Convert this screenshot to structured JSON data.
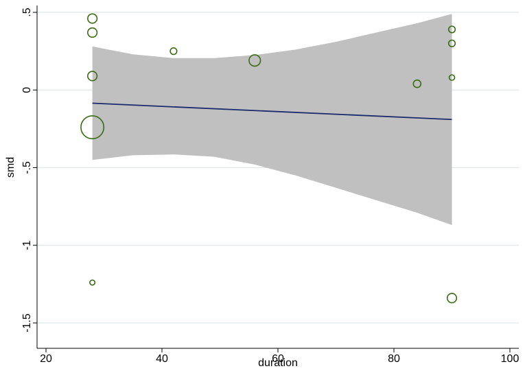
{
  "chart_data": {
    "type": "scatter",
    "xlabel": "duration",
    "ylabel": "smd",
    "xlim": [
      20,
      100
    ],
    "ylim": [
      -1.5,
      0.5
    ],
    "x_ticks": [
      {
        "value": 20,
        "label": "20"
      },
      {
        "value": 40,
        "label": "40"
      },
      {
        "value": 60,
        "label": "60"
      },
      {
        "value": 80,
        "label": "80"
      },
      {
        "value": 100,
        "label": "100"
      }
    ],
    "y_ticks": [
      {
        "value": 0.5,
        "label": ".5"
      },
      {
        "value": 0,
        "label": "0"
      },
      {
        "value": -0.5,
        "label": "-.5"
      },
      {
        "value": -1,
        "label": "-1"
      },
      {
        "value": -1.5,
        "label": "-1.5"
      }
    ],
    "grid": "horizontal",
    "points": [
      {
        "x": 28,
        "y": 0.46,
        "weight": 2
      },
      {
        "x": 28,
        "y": 0.37,
        "weight": 2
      },
      {
        "x": 28,
        "y": 0.09,
        "weight": 2
      },
      {
        "x": 28,
        "y": -0.24,
        "weight": 12
      },
      {
        "x": 28,
        "y": -1.24,
        "weight": 0.6
      },
      {
        "x": 42,
        "y": 0.25,
        "weight": 1
      },
      {
        "x": 56,
        "y": 0.19,
        "weight": 3
      },
      {
        "x": 84,
        "y": 0.04,
        "weight": 1.3
      },
      {
        "x": 90,
        "y": 0.39,
        "weight": 1
      },
      {
        "x": 90,
        "y": 0.3,
        "weight": 1
      },
      {
        "x": 90,
        "y": 0.08,
        "weight": 0.7
      },
      {
        "x": 90,
        "y": -1.34,
        "weight": 2
      }
    ],
    "fit_line": {
      "x": [
        28,
        90
      ],
      "y": [
        -0.085,
        -0.19
      ]
    },
    "confidence_band": {
      "x": [
        28,
        35,
        42,
        49,
        56,
        63,
        70,
        77,
        84,
        90
      ],
      "upper": [
        0.28,
        0.23,
        0.205,
        0.205,
        0.225,
        0.26,
        0.31,
        0.37,
        0.43,
        0.49
      ],
      "lower": [
        -0.45,
        -0.42,
        -0.415,
        -0.43,
        -0.48,
        -0.55,
        -0.63,
        -0.71,
        -0.79,
        -0.87
      ]
    },
    "colors": {
      "point_stroke": "#3a6b12",
      "fit_line": "#1a2a6c",
      "band_fill": "#c0c0c0",
      "grid": "#dfe8ea",
      "axis": "#000000"
    }
  }
}
